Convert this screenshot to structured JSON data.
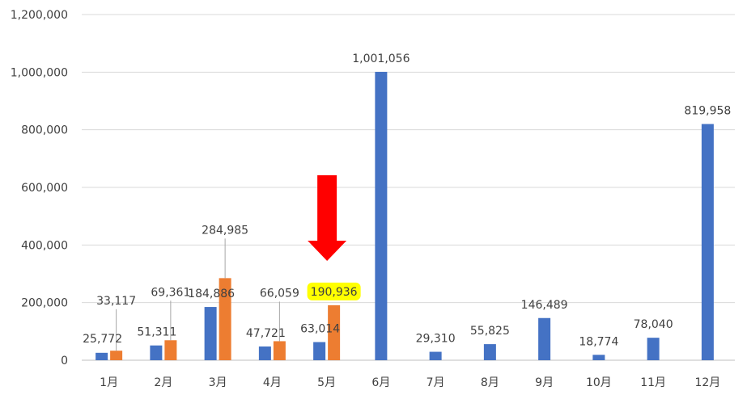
{
  "chart_data": {
    "type": "bar",
    "title": "",
    "xlabel": "",
    "ylabel": "",
    "categories": [
      "1月",
      "2月",
      "3月",
      "4月",
      "5月",
      "6月",
      "7月",
      "8月",
      "9月",
      "10月",
      "11月",
      "12月"
    ],
    "ylim": [
      0,
      1200000
    ],
    "yticks": [
      0,
      200000,
      400000,
      600000,
      800000,
      1000000,
      1200000
    ],
    "ytick_labels": [
      "0",
      "200,000",
      "400,000",
      "600,000",
      "800,000",
      "1,000,000",
      "1,200,000"
    ],
    "grid": true,
    "legend": "none",
    "series": [
      {
        "color": "#4472C4",
        "values": [
          25772,
          51311,
          184886,
          47721,
          63014,
          1001056,
          29310,
          55825,
          146489,
          18774,
          78040,
          819958
        ],
        "labels": [
          "25,772",
          "51,311",
          "184,886",
          "47,721",
          "63,014",
          "1,001,056",
          "29,310",
          "55,825",
          "146,489",
          "18,774",
          "78,040",
          "819,958"
        ]
      },
      {
        "color": "#ED7D31",
        "values": [
          33117,
          69361,
          284985,
          66059,
          190936,
          null,
          null,
          null,
          null,
          null,
          null,
          null
        ],
        "labels": [
          "33,117",
          "69,361",
          "284,985",
          "66,059",
          "190,936",
          "",
          "",
          "",
          "",
          "",
          "",
          ""
        ]
      }
    ],
    "annotations": {
      "arrow_color": "#FF0000",
      "arrow_target": "5月",
      "highlight_color": "#FFFF00",
      "highlight_label": "190,936"
    }
  }
}
